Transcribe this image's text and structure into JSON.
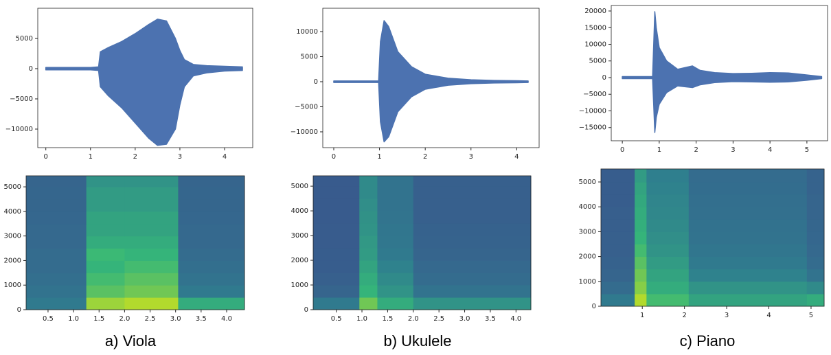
{
  "chart_data": [
    {
      "type": "waveform",
      "color": "#4c72b0",
      "x": [
        0,
        0.5,
        1.0,
        1.18,
        1.22,
        1.4,
        1.7,
        2.0,
        2.3,
        2.5,
        2.7,
        2.9,
        3.0,
        3.1,
        3.3,
        3.6,
        4.0,
        4.4
      ],
      "series": [
        {
          "values": [
            200,
            200,
            200,
            300,
            2800,
            3500,
            4500,
            5800,
            7300,
            8200,
            7900,
            5000,
            3000,
            1500,
            700,
            500,
            400,
            300
          ]
        },
        {
          "values": [
            -200,
            -200,
            -200,
            -300,
            -3000,
            -4500,
            -6500,
            -9000,
            -11500,
            -12700,
            -12500,
            -10000,
            -6000,
            -3000,
            -1200,
            -700,
            -400,
            -300
          ]
        }
      ],
      "xlim": [
        -0.18,
        4.63
      ],
      "ylim": [
        -13070,
        10000
      ],
      "xticks": [
        0,
        1,
        2,
        3,
        4
      ],
      "yticks": [
        {
          "value": -10000,
          "label": "−10000"
        },
        {
          "value": -5000,
          "label": "−5000"
        },
        0,
        5000
      ]
    },
    {
      "type": "heatmap",
      "colors": [
        "#3b4f8d",
        "#2f7f8e",
        "#35b779",
        "#c8e020"
      ],
      "zlim": [
        0,
        1
      ],
      "xbins": [
        0.07,
        1.25,
        2.0,
        3.05,
        4.35
      ],
      "ybins": [
        0,
        500,
        1000,
        1500,
        2000,
        2500,
        3000,
        3500,
        4000,
        4500,
        5000,
        5450
      ],
      "z": [
        [
          0.3,
          0.9,
          0.95,
          0.6
        ],
        [
          0.25,
          0.75,
          0.8,
          0.3
        ],
        [
          0.22,
          0.7,
          0.75,
          0.25
        ],
        [
          0.2,
          0.65,
          0.7,
          0.22
        ],
        [
          0.2,
          0.68,
          0.65,
          0.2
        ],
        [
          0.18,
          0.6,
          0.6,
          0.18
        ],
        [
          0.18,
          0.55,
          0.55,
          0.18
        ],
        [
          0.17,
          0.55,
          0.55,
          0.17
        ],
        [
          0.16,
          0.5,
          0.5,
          0.16
        ],
        [
          0.16,
          0.5,
          0.5,
          0.16
        ],
        [
          0.15,
          0.45,
          0.45,
          0.15
        ]
      ],
      "xlim": [
        0.07,
        4.35
      ],
      "ylim": [
        0,
        5450
      ],
      "xticks": [
        0.5,
        {
          "value": 1,
          "label": "1.0"
        },
        1.5,
        {
          "value": 2,
          "label": "2.0"
        },
        2.5,
        {
          "value": 3,
          "label": "3.0"
        },
        3.5,
        {
          "value": 4,
          "label": "4.0"
        }
      ],
      "yticks": [
        0,
        1000,
        2000,
        3000,
        4000,
        5000
      ]
    },
    {
      "type": "waveform",
      "color": "#4c72b0",
      "x": [
        0,
        0.5,
        0.98,
        1.02,
        1.1,
        1.2,
        1.4,
        1.7,
        2.0,
        2.5,
        3.0,
        3.5,
        4.0,
        4.25
      ],
      "series": [
        {
          "values": [
            150,
            150,
            150,
            8000,
            12200,
            11000,
            6000,
            3000,
            1500,
            700,
            400,
            250,
            200,
            150
          ]
        },
        {
          "values": [
            -150,
            -150,
            -150,
            -8000,
            -12000,
            -11000,
            -6000,
            -3000,
            -1500,
            -700,
            -400,
            -250,
            -200,
            -150
          ]
        }
      ],
      "xlim": [
        -0.24,
        4.49
      ],
      "ylim": [
        -13150,
        14660
      ],
      "xticks": [
        0,
        1,
        2,
        3,
        4
      ],
      "yticks": [
        {
          "value": -10000,
          "label": "−10000"
        },
        {
          "value": -5000,
          "label": "−5000"
        },
        0,
        5000,
        10000
      ]
    },
    {
      "type": "heatmap",
      "colors": [
        "#3b4f8d",
        "#2f7f8e",
        "#35b779",
        "#c8e020"
      ],
      "zlim": [
        0,
        1
      ],
      "xbins": [
        0.05,
        0.95,
        1.3,
        2.0,
        4.29
      ],
      "ybins": [
        0,
        500,
        1000,
        1500,
        2000,
        2500,
        3000,
        3500,
        4000,
        4500,
        5000,
        5420
      ],
      "z": [
        [
          0.3,
          0.8,
          0.6,
          0.45
        ],
        [
          0.15,
          0.65,
          0.45,
          0.25
        ],
        [
          0.12,
          0.6,
          0.4,
          0.2
        ],
        [
          0.1,
          0.55,
          0.35,
          0.18
        ],
        [
          0.1,
          0.5,
          0.3,
          0.15
        ],
        [
          0.09,
          0.48,
          0.28,
          0.14
        ],
        [
          0.09,
          0.45,
          0.27,
          0.13
        ],
        [
          0.08,
          0.44,
          0.26,
          0.12
        ],
        [
          0.08,
          0.42,
          0.25,
          0.12
        ],
        [
          0.08,
          0.4,
          0.25,
          0.12
        ],
        [
          0.08,
          0.4,
          0.25,
          0.12
        ]
      ],
      "xlim": [
        0.05,
        4.29
      ],
      "ylim": [
        0,
        5420
      ],
      "xticks": [
        0.5,
        {
          "value": 1,
          "label": "1.0"
        },
        1.5,
        {
          "value": 2,
          "label": "2.0"
        },
        2.5,
        {
          "value": 3,
          "label": "3.0"
        },
        3.5,
        {
          "value": 4,
          "label": "4.0"
        }
      ],
      "yticks": [
        0,
        1000,
        2000,
        3000,
        4000,
        5000
      ]
    },
    {
      "type": "waveform",
      "color": "#4c72b0",
      "x": [
        0,
        0.5,
        0.82,
        0.88,
        0.92,
        1.0,
        1.2,
        1.5,
        1.9,
        2.1,
        2.5,
        3.0,
        3.5,
        4.0,
        4.5,
        5.0,
        5.4
      ],
      "series": [
        {
          "values": [
            300,
            300,
            300,
            19800,
            15000,
            9000,
            5000,
            2500,
            3500,
            2200,
            1500,
            1200,
            1300,
            1500,
            1400,
            800,
            300
          ]
        },
        {
          "values": [
            -300,
            -300,
            -300,
            -16500,
            -12000,
            -8000,
            -4500,
            -2500,
            -3000,
            -2200,
            -1500,
            -1200,
            -1300,
            -1400,
            -1300,
            -800,
            -300
          ]
        }
      ],
      "xlim": [
        -0.3,
        5.56
      ],
      "ylim": [
        -18970,
        21650
      ],
      "xticks": [
        0,
        1,
        2,
        3,
        4,
        5
      ],
      "yticks": [
        {
          "value": -15000,
          "label": "−15000"
        },
        {
          "value": -10000,
          "label": "−10000"
        },
        {
          "value": -5000,
          "label": "−5000"
        },
        0,
        5000,
        10000,
        15000,
        20000
      ]
    },
    {
      "type": "heatmap",
      "colors": [
        "#3b4f8d",
        "#2f7f8e",
        "#35b779",
        "#c8e020"
      ],
      "zlim": [
        0,
        1
      ],
      "xbins": [
        0.02,
        0.82,
        1.1,
        2.1,
        4.9,
        5.31
      ],
      "ybins": [
        0,
        500,
        1000,
        1500,
        2000,
        2500,
        3000,
        3500,
        4000,
        4500,
        5000,
        5525
      ],
      "z": [
        [
          0.3,
          0.95,
          0.7,
          0.55,
          0.6
        ],
        [
          0.2,
          0.85,
          0.6,
          0.45,
          0.4
        ],
        [
          0.15,
          0.8,
          0.55,
          0.35,
          0.25
        ],
        [
          0.13,
          0.75,
          0.5,
          0.3,
          0.2
        ],
        [
          0.12,
          0.7,
          0.45,
          0.27,
          0.18
        ],
        [
          0.12,
          0.65,
          0.42,
          0.25,
          0.17
        ],
        [
          0.11,
          0.62,
          0.4,
          0.24,
          0.16
        ],
        [
          0.11,
          0.6,
          0.38,
          0.23,
          0.15
        ],
        [
          0.1,
          0.58,
          0.37,
          0.22,
          0.15
        ],
        [
          0.1,
          0.55,
          0.35,
          0.21,
          0.14
        ],
        [
          0.1,
          0.5,
          0.33,
          0.2,
          0.14
        ]
      ],
      "xlim": [
        0.02,
        5.31
      ],
      "ylim": [
        0,
        5525
      ],
      "xticks": [
        1,
        2,
        3,
        4,
        5
      ],
      "yticks": [
        0,
        1000,
        2000,
        3000,
        4000,
        5000
      ]
    }
  ],
  "captions": [
    "a) Viola",
    "b) Ukulele",
    "c) Piano"
  ]
}
